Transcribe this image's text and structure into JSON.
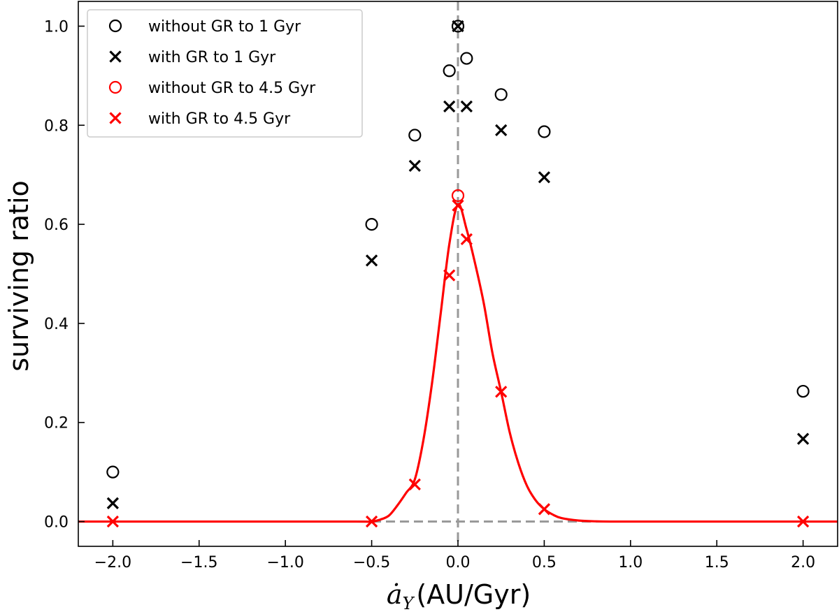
{
  "chart_data": {
    "type": "scatter",
    "title": "",
    "xlabel_symbol": "ȧ",
    "xlabel_subscript": "Y",
    "xlabel_units": "(AU/Gyr)",
    "ylabel": "surviving ratio",
    "xlim": [
      -2.2,
      2.2
    ],
    "ylim": [
      -0.05,
      1.05
    ],
    "xticks": [
      -2.0,
      -1.5,
      -1.0,
      -0.5,
      0.0,
      0.5,
      1.0,
      1.5,
      2.0
    ],
    "yticks": [
      0.0,
      0.2,
      0.4,
      0.6,
      0.8,
      1.0
    ],
    "xtick_labels": [
      "−2.0",
      "−1.5",
      "−1.0",
      "−0.5",
      "0.0",
      "0.5",
      "1.0",
      "1.5",
      "2.0"
    ],
    "ytick_labels": [
      "0.0",
      "0.2",
      "0.4",
      "0.6",
      "0.8",
      "1.0"
    ],
    "legend_position": "top-left",
    "reference_lines": [
      {
        "orientation": "vertical",
        "x": 0.0,
        "style": "dashed",
        "color": "#999999"
      },
      {
        "orientation": "horizontal",
        "y": 0.0,
        "style": "dashed",
        "color": "#999999"
      }
    ],
    "series": [
      {
        "name": "without GR to 1 Gyr",
        "marker": "circle",
        "color": "#000000",
        "x": [
          -2.0,
          -0.5,
          -0.25,
          -0.05,
          0.0,
          0.05,
          0.25,
          0.5,
          2.0
        ],
        "y": [
          0.1,
          0.6,
          0.78,
          0.91,
          1.0,
          0.935,
          0.862,
          0.787,
          0.263
        ]
      },
      {
        "name": "with GR to 1 Gyr",
        "marker": "x",
        "color": "#000000",
        "x": [
          -2.0,
          -0.5,
          -0.25,
          -0.05,
          0.0,
          0.05,
          0.25,
          0.5,
          2.0
        ],
        "y": [
          0.037,
          0.527,
          0.718,
          0.838,
          1.0,
          0.838,
          0.79,
          0.695,
          0.167
        ]
      },
      {
        "name": "without GR to 4.5 Gyr",
        "marker": "circle",
        "color": "#ff0000",
        "x": [
          0.0
        ],
        "y": [
          0.658
        ]
      },
      {
        "name": "with GR to 4.5 Gyr",
        "marker": "x",
        "color": "#ff0000",
        "x": [
          -2.0,
          -0.5,
          -0.25,
          -0.05,
          0.0,
          0.05,
          0.25,
          0.5,
          2.0
        ],
        "y": [
          0.0,
          0.0,
          0.075,
          0.497,
          0.638,
          0.57,
          0.262,
          0.025,
          0.0
        ]
      }
    ],
    "fit_curve": {
      "color": "#ff0000",
      "x": [
        -2.2,
        -1.0,
        -0.6,
        -0.5,
        -0.45,
        -0.4,
        -0.35,
        -0.3,
        -0.25,
        -0.2,
        -0.15,
        -0.1,
        -0.05,
        0.0,
        0.05,
        0.1,
        0.15,
        0.2,
        0.25,
        0.3,
        0.35,
        0.4,
        0.45,
        0.5,
        0.55,
        0.6,
        0.7,
        0.8,
        0.9,
        1.0,
        2.2
      ],
      "y": [
        0.0,
        0.0,
        0.0,
        0.0,
        0.004,
        0.012,
        0.033,
        0.058,
        0.085,
        0.165,
        0.28,
        0.42,
        0.56,
        0.64,
        0.59,
        0.52,
        0.44,
        0.34,
        0.262,
        0.18,
        0.118,
        0.072,
        0.043,
        0.025,
        0.014,
        0.007,
        0.002,
        0.0005,
        0.0,
        0.0,
        0.0
      ]
    }
  }
}
